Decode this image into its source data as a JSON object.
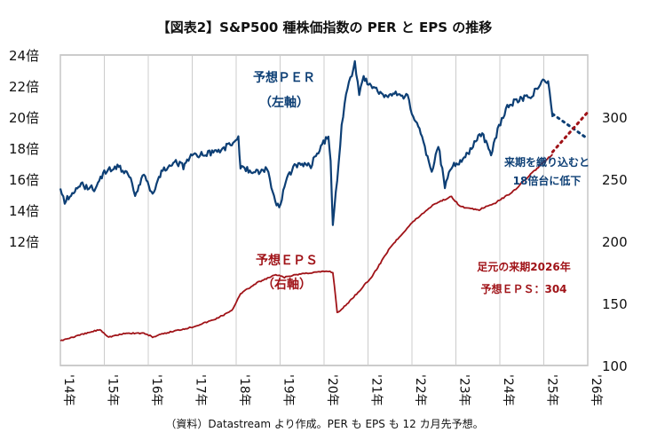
{
  "title": "【図表2】S&P500 種株価指数の PER と EPS の推移",
  "source": "（資料）Datastream より作成。PER も EPS も 12 カ月先予想。",
  "colors": {
    "per": "#0d3f75",
    "eps": "#a01318",
    "grid": "#cccccc"
  },
  "chart_data": {
    "type": "line",
    "title": "【図表2】S&P500 種株価指数の PER と EPS の推移",
    "x_ticks": [
      "'14年",
      "'15年",
      "'16年",
      "'17年",
      "'18年",
      "'19年",
      "'20年",
      "'21年",
      "'22年",
      "'23年",
      "'24年",
      "'25年",
      "'26年"
    ],
    "xlim": [
      2014,
      2026
    ],
    "left_axis": {
      "ticks": [
        "12倍",
        "14倍",
        "16倍",
        "18倍",
        "20倍",
        "22倍",
        "24倍"
      ],
      "tick_values": [
        12,
        14,
        16,
        18,
        20,
        22,
        24
      ],
      "ylim": [
        4,
        24
      ]
    },
    "right_axis": {
      "ticks": [
        "100",
        "150",
        "200",
        "250",
        "300"
      ],
      "tick_values": [
        100,
        150,
        200,
        250,
        300
      ],
      "ylim": [
        100,
        350
      ]
    },
    "grid": "vertical",
    "series": [
      {
        "name": "予想ＰＥＲ",
        "axis": "left",
        "color": "#0d3f75",
        "x": [
          2014.0,
          2014.1,
          2014.3,
          2014.5,
          2014.8,
          2015.0,
          2015.3,
          2015.6,
          2015.7,
          2015.9,
          2016.1,
          2016.3,
          2016.6,
          2016.8,
          2017.0,
          2017.3,
          2017.6,
          2017.9,
          2018.05,
          2018.1,
          2018.4,
          2018.7,
          2018.8,
          2018.98,
          2019.1,
          2019.3,
          2019.5,
          2019.7,
          2019.9,
          2020.1,
          2020.15,
          2020.2,
          2020.3,
          2020.4,
          2020.5,
          2020.6,
          2020.7,
          2020.8,
          2020.9,
          2021.1,
          2021.4,
          2021.6,
          2021.9,
          2022.0,
          2022.2,
          2022.45,
          2022.6,
          2022.75,
          2022.9,
          2023.1,
          2023.3,
          2023.6,
          2023.8,
          2023.95,
          2024.2,
          2024.5,
          2024.7,
          2024.95,
          2025.1,
          2025.2
        ],
        "values": [
          15.3,
          14.6,
          15.2,
          15.6,
          15.4,
          16.5,
          16.8,
          16.2,
          15.0,
          16.3,
          15.1,
          16.5,
          17.2,
          16.8,
          17.5,
          17.6,
          17.8,
          18.3,
          18.7,
          16.8,
          16.4,
          16.7,
          15.5,
          14.0,
          15.6,
          16.8,
          17.0,
          16.9,
          18.0,
          18.8,
          17.0,
          13.2,
          16.0,
          19.5,
          21.5,
          22.5,
          23.5,
          21.5,
          22.5,
          22.0,
          21.3,
          21.5,
          21.3,
          20.2,
          19.0,
          16.5,
          18.2,
          15.5,
          16.8,
          17.2,
          17.8,
          19.0,
          17.5,
          19.2,
          20.8,
          21.2,
          21.3,
          22.3,
          22.2,
          20.0
        ],
        "projection": {
          "x": [
            2025.2,
            2026.0
          ],
          "values": [
            20.2,
            18.6
          ]
        }
      },
      {
        "name": "予想ＥＰＳ",
        "axis": "right",
        "color": "#a01318",
        "x": [
          2014.0,
          2014.5,
          2014.9,
          2015.1,
          2015.5,
          2015.9,
          2016.1,
          2016.5,
          2017.0,
          2017.5,
          2017.9,
          2018.1,
          2018.5,
          2018.9,
          2019.1,
          2019.5,
          2020.1,
          2020.2,
          2020.3,
          2020.4,
          2020.8,
          2021.1,
          2021.5,
          2022.0,
          2022.5,
          2022.9,
          2023.1,
          2023.5,
          2023.9,
          2024.3,
          2024.7,
          2025.2
        ],
        "values": [
          120,
          125,
          129,
          123,
          126,
          126,
          123,
          127,
          131,
          137,
          144,
          158,
          167,
          173,
          171,
          174,
          176,
          175,
          143,
          145,
          160,
          172,
          195,
          215,
          230,
          236,
          228,
          225,
          231,
          240,
          254,
          270
        ],
        "projection": {
          "x": [
            2025.2,
            2026.0
          ],
          "values": [
            272,
            304
          ]
        }
      }
    ],
    "annotations": {
      "per_label": "予想ＰＥＲ",
      "per_axis": "（左軸）",
      "eps_label": "予想ＥＰＳ",
      "eps_axis": "（右軸）",
      "per_note_1": "来期を織り込むと",
      "per_note_2": "18倍台に低下",
      "eps_note_1": "足元の来期2026年",
      "eps_note_2": "予想ＥＰＳ：304"
    }
  }
}
